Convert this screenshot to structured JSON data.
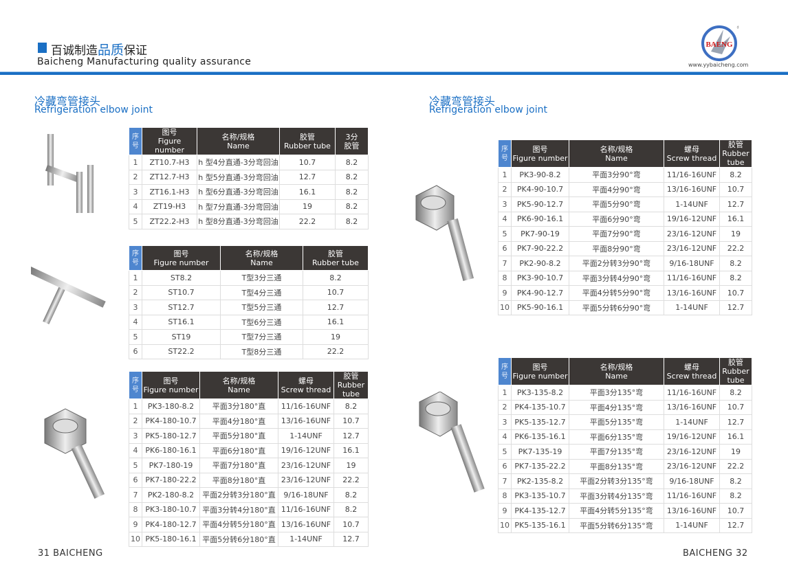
{
  "header": {
    "title_cn_pre": "百诚制造",
    "title_cn_hl": "品质",
    "title_cn_post": "保证",
    "title_en": "Baicheng Manufacturing quality assurance",
    "logo_text": "BAENG",
    "url": "www.yybaicheng.com",
    "accent": "#1a6fc4"
  },
  "left": {
    "section_cn": "冷藏弯管接头",
    "section_en": "Refrigeration elbow joint"
  },
  "right": {
    "section_cn": "冷藏弯管接头",
    "section_en": "Refrigeration elbow joint"
  },
  "tables": [
    {
      "headers": [
        "序号",
        "图号 Figure number",
        "名称/规格 Name",
        "胶管 Rubber tube",
        "3分 胶管"
      ],
      "rows": [
        [
          "1",
          "ZT10.7-H3",
          "h 型4分直通-3分弯回油",
          "10.7",
          "8.2"
        ],
        [
          "2",
          "ZT12.7-H3",
          "h 型5分直通-3分弯回油",
          "12.7",
          "8.2"
        ],
        [
          "3",
          "ZT16.1-H3",
          "h 型6分直通-3分弯回油",
          "16.1",
          "8.2"
        ],
        [
          "4",
          "ZT19-H3",
          "h 型7分直通-3分弯回油",
          "19",
          "8.2"
        ],
        [
          "5",
          "ZT22.2-H3",
          "h 型8分直通-3分弯回油",
          "22.2",
          "8.2"
        ]
      ]
    },
    {
      "headers": [
        "序号",
        "图号 Figure number",
        "名称/规格 Name",
        "胶管 Rubber tube"
      ],
      "rows": [
        [
          "1",
          "ST8.2",
          "T型3分三通",
          "8.2"
        ],
        [
          "2",
          "ST10.7",
          "T型4分三通",
          "10.7"
        ],
        [
          "3",
          "ST12.7",
          "T型5分三通",
          "12.7"
        ],
        [
          "4",
          "ST16.1",
          "T型6分三通",
          "16.1"
        ],
        [
          "5",
          "ST19",
          "T型7分三通",
          "19"
        ],
        [
          "6",
          "ST22.2",
          "T型8分三通",
          "22.2"
        ]
      ]
    },
    {
      "headers": [
        "序号",
        "图号 Figure number",
        "名称/规格 Name",
        "螺母 Screw thread",
        "胶管 Rubber tube"
      ],
      "rows": [
        [
          "1",
          "PK3-180-8.2",
          "平面3分180°直",
          "11/16-16UNF",
          "8.2"
        ],
        [
          "2",
          "PK4-180-10.7",
          "平面4分180°直",
          "13/16-16UNF",
          "10.7"
        ],
        [
          "3",
          "PK5-180-12.7",
          "平面5分180°直",
          "1-14UNF",
          "12.7"
        ],
        [
          "4",
          "PK6-180-16.1",
          "平面6分180°直",
          "19/16-12UNF",
          "16.1"
        ],
        [
          "5",
          "PK7-180-19",
          "平面7分180°直",
          "23/16-12UNF",
          "19"
        ],
        [
          "6",
          "PK7-180-22.2",
          "平面8分180°直",
          "23/16-12UNF",
          "22.2"
        ],
        [
          "7",
          "PK2-180-8.2",
          "平面2分转3分180°直",
          "9/16-18UNF",
          "8.2"
        ],
        [
          "8",
          "PK3-180-10.7",
          "平面3分转4分180°直",
          "11/16-16UNF",
          "8.2"
        ],
        [
          "9",
          "PK4-180-12.7",
          "平面4分转5分180°直",
          "13/16-16UNF",
          "10.7"
        ],
        [
          "10",
          "PK5-180-16.1",
          "平面5分转6分180°直",
          "1-14UNF",
          "12.7"
        ]
      ]
    },
    {
      "headers": [
        "序号",
        "图号 Figure number",
        "名称/规格 Name",
        "螺母 Screw thread",
        "胶管 Rubber tube"
      ],
      "rows": [
        [
          "1",
          "PK3-90-8.2",
          "平面3分90°弯",
          "11/16-16UNF",
          "8.2"
        ],
        [
          "2",
          "PK4-90-10.7",
          "平面4分90°弯",
          "13/16-16UNF",
          "10.7"
        ],
        [
          "3",
          "PK5-90-12.7",
          "平面5分90°弯",
          "1-14UNF",
          "12.7"
        ],
        [
          "4",
          "PK6-90-16.1",
          "平面6分90°弯",
          "19/16-12UNF",
          "16.1"
        ],
        [
          "5",
          "PK7-90-19",
          "平面7分90°弯",
          "23/16-12UNF",
          "19"
        ],
        [
          "6",
          "PK7-90-22.2",
          "平面8分90°弯",
          "23/16-12UNF",
          "22.2"
        ],
        [
          "7",
          "PK2-90-8.2",
          "平面2分转3分90°弯",
          "9/16-18UNF",
          "8.2"
        ],
        [
          "8",
          "PK3-90-10.7",
          "平面3分转4分90°弯",
          "11/16-16UNF",
          "8.2"
        ],
        [
          "9",
          "PK4-90-12.7",
          "平面4分转5分90°弯",
          "13/16-16UNF",
          "10.7"
        ],
        [
          "10",
          "PK5-90-16.1",
          "平面5分转6分90°弯",
          "1-14UNF",
          "12.7"
        ]
      ]
    },
    {
      "headers": [
        "序号",
        "图号 Figure number",
        "名称/规格 Name",
        "螺母 Screw thread",
        "胶管 Rubber tube"
      ],
      "rows": [
        [
          "1",
          "PK3-135-8.2",
          "平面3分135°弯",
          "11/16-16UNF",
          "8.2"
        ],
        [
          "2",
          "PK4-135-10.7",
          "平面4分135°弯",
          "13/16-16UNF",
          "10.7"
        ],
        [
          "3",
          "PK5-135-12.7",
          "平面5分135°弯",
          "1-14UNF",
          "12.7"
        ],
        [
          "4",
          "PK6-135-16.1",
          "平面6分135°弯",
          "19/16-12UNF",
          "16.1"
        ],
        [
          "5",
          "PK7-135-19",
          "平面7分135°弯",
          "23/16-12UNF",
          "19"
        ],
        [
          "6",
          "PK7-135-22.2",
          "平面8分135°弯",
          "23/16-12UNF",
          "22.2"
        ],
        [
          "7",
          "PK2-135-8.2",
          "平面2分转3分135°弯",
          "9/16-18UNF",
          "8.2"
        ],
        [
          "8",
          "PK3-135-10.7",
          "平面3分转4分135°弯",
          "11/16-16UNF",
          "8.2"
        ],
        [
          "9",
          "PK4-135-12.7",
          "平面4分转5分135°弯",
          "13/16-16UNF",
          "10.7"
        ],
        [
          "10",
          "PK5-135-16.1",
          "平面5分转6分135°弯",
          "1-14UNF",
          "12.7"
        ]
      ]
    }
  ],
  "footer": {
    "left": "31 BAICHENG",
    "right": "BAICHENG 32"
  }
}
